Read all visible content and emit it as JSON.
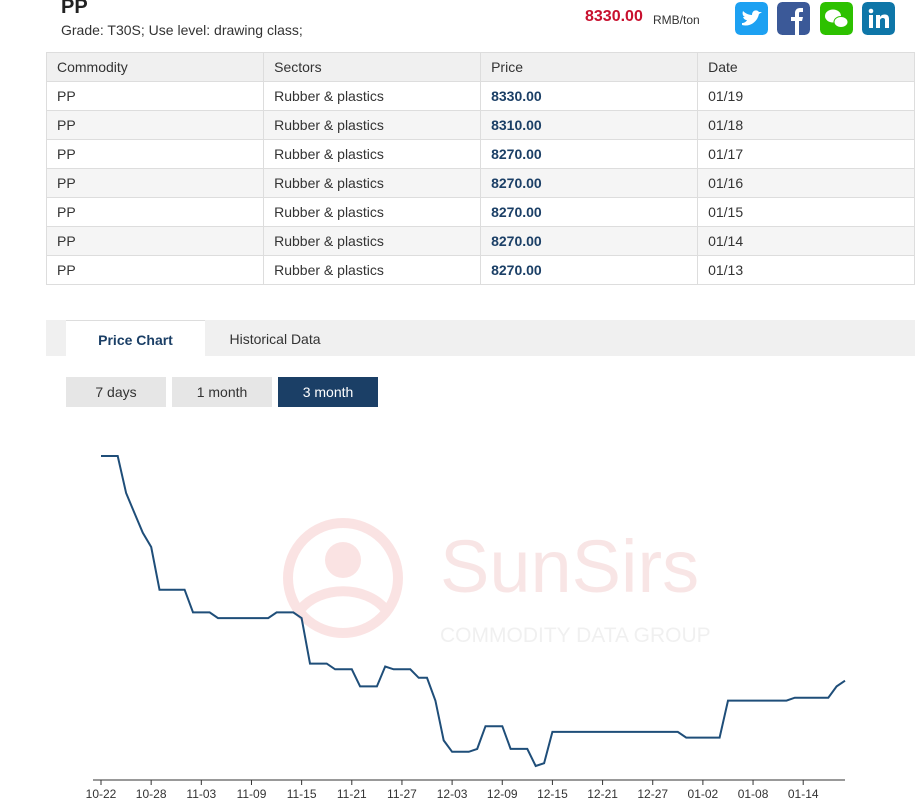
{
  "header": {
    "title": "PP",
    "subtitle": "Grade: T30S; Use level: drawing class;",
    "price": "8330.00",
    "unit": "RMB/ton"
  },
  "table": {
    "columns": [
      "Commodity",
      "Sectors",
      "Price",
      "Date"
    ],
    "rows": [
      [
        "PP",
        "Rubber & plastics",
        "8330.00",
        "01/19"
      ],
      [
        "PP",
        "Rubber & plastics",
        "8310.00",
        "01/18"
      ],
      [
        "PP",
        "Rubber & plastics",
        "8270.00",
        "01/17"
      ],
      [
        "PP",
        "Rubber & plastics",
        "8270.00",
        "01/16"
      ],
      [
        "PP",
        "Rubber & plastics",
        "8270.00",
        "01/15"
      ],
      [
        "PP",
        "Rubber & plastics",
        "8270.00",
        "01/14"
      ],
      [
        "PP",
        "Rubber & plastics",
        "8270.00",
        "01/13"
      ]
    ]
  },
  "tabs": [
    "Price Chart",
    "Historical Data"
  ],
  "ranges": [
    "7 days",
    "1 month",
    "3 month"
  ],
  "watermark": {
    "title": "SunSirs",
    "subtitle": "COMMODITY DATA GROUP"
  },
  "chart_data": {
    "type": "line",
    "color": "#1f4e79",
    "categories": [
      "10-22",
      null,
      null,
      null,
      null,
      null,
      "10-28",
      null,
      null,
      null,
      null,
      null,
      "11-03",
      null,
      null,
      null,
      null,
      null,
      "11-09",
      null,
      null,
      null,
      null,
      null,
      "11-15",
      null,
      null,
      null,
      null,
      null,
      "11-21",
      null,
      null,
      null,
      null,
      null,
      "11-27",
      null,
      null,
      null,
      null,
      null,
      "12-03",
      null,
      null,
      null,
      null,
      null,
      "12-09",
      null,
      null,
      null,
      null,
      null,
      "12-15",
      null,
      null,
      null,
      null,
      null,
      "12-21",
      null,
      null,
      null,
      null,
      null,
      "12-27",
      null,
      null,
      null,
      null,
      null,
      "01-02",
      null,
      null,
      null,
      null,
      null,
      "01-08",
      null,
      null,
      null,
      null,
      null,
      "01-14",
      null,
      null,
      null,
      null,
      null
    ],
    "values": [
      9120,
      9120,
      9120,
      8990,
      8920,
      8850,
      8800,
      8650,
      8650,
      8650,
      8650,
      8570,
      8570,
      8570,
      8550,
      8550,
      8550,
      8550,
      8550,
      8550,
      8550,
      8570,
      8570,
      8570,
      8550,
      8390,
      8390,
      8390,
      8370,
      8370,
      8370,
      8310,
      8310,
      8310,
      8380,
      8370,
      8370,
      8370,
      8340,
      8340,
      8260,
      8120,
      8080,
      8080,
      8080,
      8090,
      8170,
      8170,
      8170,
      8090,
      8090,
      8090,
      8030,
      8040,
      8150,
      8150,
      8150,
      8150,
      8150,
      8150,
      8150,
      8150,
      8150,
      8150,
      8150,
      8150,
      8150,
      8150,
      8150,
      8150,
      8130,
      8130,
      8130,
      8130,
      8130,
      8260,
      8260,
      8260,
      8260,
      8260,
      8260,
      8260,
      8260,
      8270,
      8270,
      8270,
      8270,
      8270,
      8310,
      8330
    ]
  }
}
